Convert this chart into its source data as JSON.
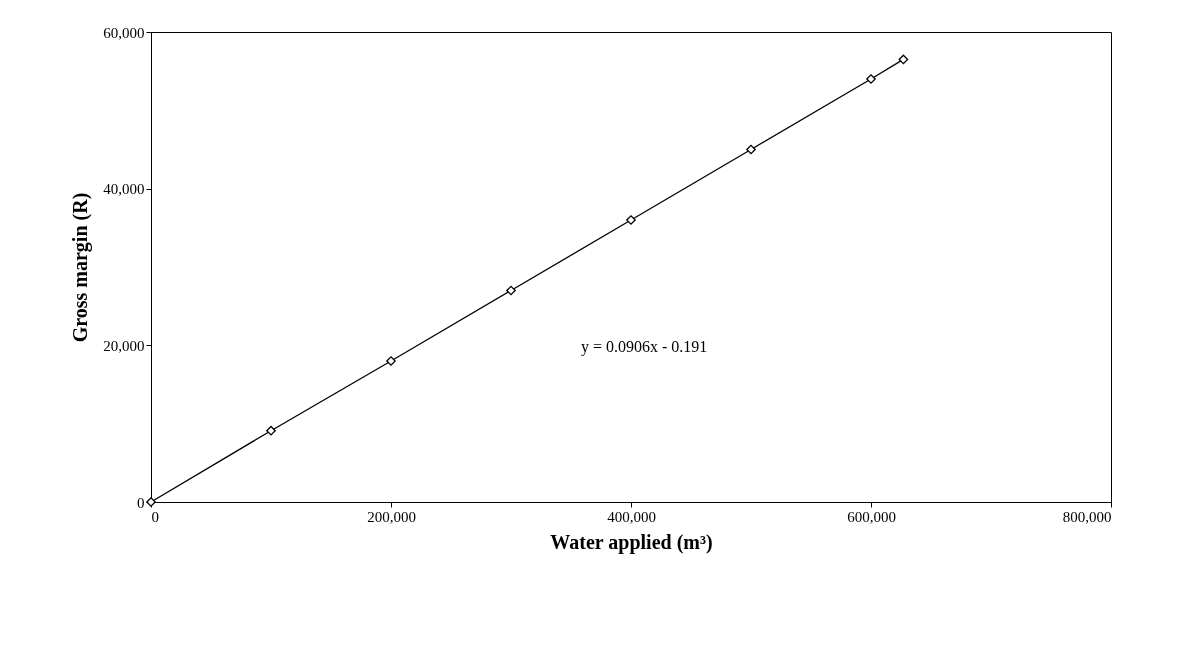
{
  "chart_data": {
    "type": "line",
    "xlabel": "Water applied (m³)",
    "ylabel": "Gross margin (R)",
    "x": [
      0,
      100000,
      200000,
      300000,
      400000,
      500000,
      600000,
      627000
    ],
    "series": [
      {
        "color": "#000000",
        "values": [
          0,
          9100,
          18000,
          27000,
          36000,
          45000,
          54000,
          56500
        ]
      }
    ],
    "marker": "diamond",
    "line_style": "solid",
    "xlim": [
      0,
      800000
    ],
    "xticks": [
      0,
      {
        "value": 200000,
        "label": "200,000"
      },
      {
        "value": 400000,
        "label": "400,000"
      },
      {
        "value": 600000,
        "label": "600,000"
      },
      {
        "value": 800000,
        "label": "800,000"
      }
    ],
    "ylim": [
      0,
      60000
    ],
    "yticks": [
      0,
      {
        "value": 20000,
        "label": "20,000"
      },
      {
        "value": 40000,
        "label": "40,000"
      },
      {
        "value": 60000,
        "label": "60,000"
      }
    ],
    "annotations": [
      "y = 0.0906x - 0.191"
    ],
    "grid": false
  }
}
